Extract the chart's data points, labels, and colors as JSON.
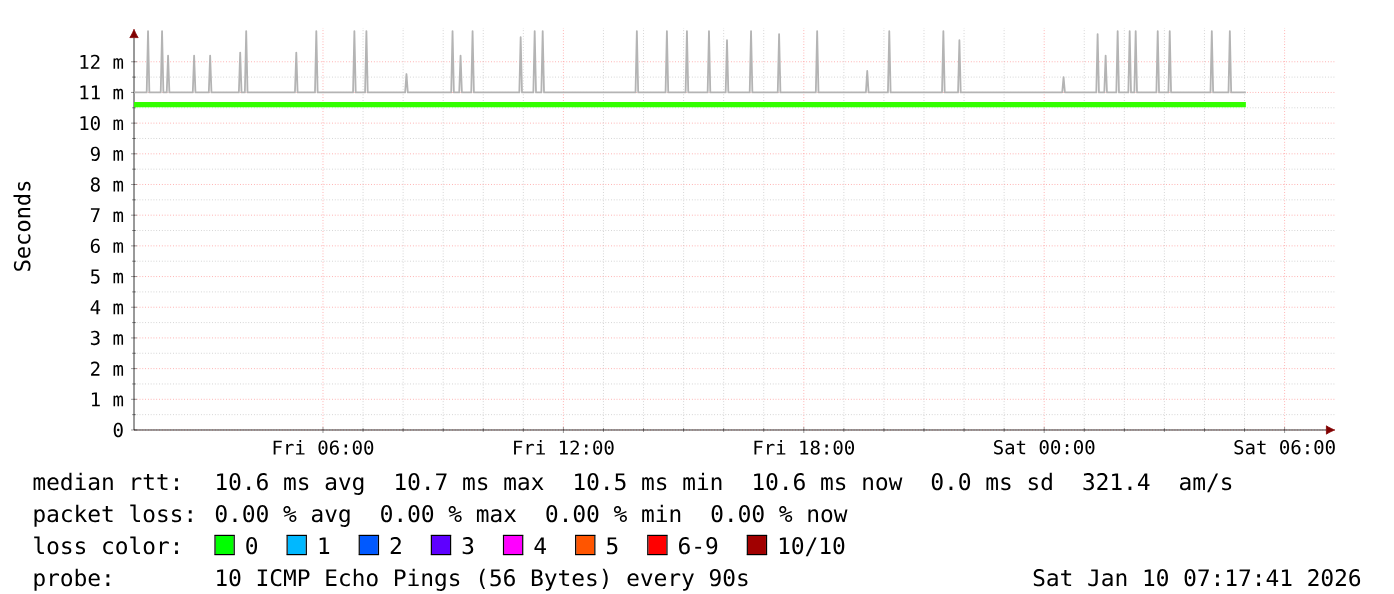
{
  "chart_data": {
    "type": "line",
    "ylabel": "Seconds",
    "xlim": [
      "2026-01-09T01:17",
      "2026-01-10T07:17"
    ],
    "xticks": [
      {
        "value": "2026-01-09T06:00",
        "label": "Fri 06:00"
      },
      {
        "value": "2026-01-09T12:00",
        "label": "Fri 12:00"
      },
      {
        "value": "2026-01-09T18:00",
        "label": "Fri 18:00"
      },
      {
        "value": "2026-01-10T00:00",
        "label": "Sat 00:00"
      },
      {
        "value": "2026-01-10T06:00",
        "label": "Sat 06:00"
      }
    ],
    "ylim": [
      0,
      13.1
    ],
    "yticks": [
      0,
      {
        "value": 1,
        "label": "1 m"
      },
      {
        "value": 2,
        "label": "2 m"
      },
      {
        "value": 3,
        "label": "3 m"
      },
      {
        "value": 4,
        "label": "4 m"
      },
      {
        "value": 5,
        "label": "5 m"
      },
      {
        "value": 6,
        "label": "6 m"
      },
      {
        "value": 7,
        "label": "7 m"
      },
      {
        "value": 8,
        "label": "8 m"
      },
      {
        "value": 9,
        "label": "9 m"
      },
      {
        "value": 10,
        "label": "10 m"
      },
      {
        "value": 11,
        "label": "11 m"
      },
      {
        "value": 12,
        "label": "12 m"
      }
    ],
    "grid": true,
    "series": [
      {
        "color": "#b4b4b4",
        "x": [
          "2026-01-09T01:17",
          "2026-01-09T01:36",
          "2026-01-09T01:38",
          "2026-01-09T01:40",
          "2026-01-09T01:57",
          "2026-01-09T01:59",
          "2026-01-09T02:01",
          "2026-01-09T02:06",
          "2026-01-09T02:08",
          "2026-01-09T02:10",
          "2026-01-09T02:45",
          "2026-01-09T02:47",
          "2026-01-09T02:49",
          "2026-01-09T03:09",
          "2026-01-09T03:11",
          "2026-01-09T03:13",
          "2026-01-09T03:54",
          "2026-01-09T03:56",
          "2026-01-09T03:58",
          "2026-01-09T04:03",
          "2026-01-09T04:05",
          "2026-01-09T04:07",
          "2026-01-09T05:18",
          "2026-01-09T05:20",
          "2026-01-09T05:22",
          "2026-01-09T05:48",
          "2026-01-09T05:50",
          "2026-01-09T05:52",
          "2026-01-09T06:45",
          "2026-01-09T06:47",
          "2026-01-09T06:49",
          "2026-01-09T07:03",
          "2026-01-09T07:05",
          "2026-01-09T07:07",
          "2026-01-09T08:03",
          "2026-01-09T08:05",
          "2026-01-09T08:07",
          "2026-01-09T09:12",
          "2026-01-09T09:14",
          "2026-01-09T09:16",
          "2026-01-09T09:24",
          "2026-01-09T09:26",
          "2026-01-09T09:28",
          "2026-01-09T09:42",
          "2026-01-09T09:44",
          "2026-01-09T09:46",
          "2026-01-09T10:54",
          "2026-01-09T10:56",
          "2026-01-09T10:58",
          "2026-01-09T11:15",
          "2026-01-09T11:17",
          "2026-01-09T11:19",
          "2026-01-09T11:27",
          "2026-01-09T11:29",
          "2026-01-09T11:31",
          "2026-01-09T13:48",
          "2026-01-09T13:50",
          "2026-01-09T13:52",
          "2026-01-09T14:33",
          "2026-01-09T14:35",
          "2026-01-09T14:37",
          "2026-01-09T15:03",
          "2026-01-09T15:05",
          "2026-01-09T15:07",
          "2026-01-09T15:36",
          "2026-01-09T15:38",
          "2026-01-09T15:40",
          "2026-01-09T16:03",
          "2026-01-09T16:05",
          "2026-01-09T16:07",
          "2026-01-09T16:39",
          "2026-01-09T16:41",
          "2026-01-09T16:43",
          "2026-01-09T17:21",
          "2026-01-09T17:23",
          "2026-01-09T17:25",
          "2026-01-09T18:18",
          "2026-01-09T18:20",
          "2026-01-09T18:22",
          "2026-01-09T19:33",
          "2026-01-09T19:35",
          "2026-01-09T19:37",
          "2026-01-09T20:06",
          "2026-01-09T20:08",
          "2026-01-09T20:10",
          "2026-01-09T21:27",
          "2026-01-09T21:29",
          "2026-01-09T21:31",
          "2026-01-09T21:51",
          "2026-01-09T21:53",
          "2026-01-09T21:55",
          "2026-01-10T00:27",
          "2026-01-10T00:29",
          "2026-01-10T00:31",
          "2026-01-10T01:18",
          "2026-01-10T01:20",
          "2026-01-10T01:22",
          "2026-01-10T01:30",
          "2026-01-10T01:32",
          "2026-01-10T01:34",
          "2026-01-10T01:48",
          "2026-01-10T01:50",
          "2026-01-10T01:52",
          "2026-01-10T02:06",
          "2026-01-10T02:08",
          "2026-01-10T02:10",
          "2026-01-10T02:15",
          "2026-01-10T02:17",
          "2026-01-10T02:19",
          "2026-01-10T02:48",
          "2026-01-10T02:50",
          "2026-01-10T02:52",
          "2026-01-10T03:06",
          "2026-01-10T03:08",
          "2026-01-10T03:10",
          "2026-01-10T04:09",
          "2026-01-10T04:11",
          "2026-01-10T04:13",
          "2026-01-10T04:36",
          "2026-01-10T04:38",
          "2026-01-10T04:40",
          "2026-01-10T05:02"
        ],
        "values": [
          11.0,
          11.0,
          13.0,
          11.0,
          11.0,
          13.0,
          11.0,
          11.0,
          12.2,
          11.0,
          11.0,
          12.2,
          11.0,
          11.0,
          12.2,
          11.0,
          11.0,
          12.3,
          11.0,
          11.0,
          13.0,
          11.0,
          11.0,
          12.3,
          11.0,
          11.0,
          13.0,
          11.0,
          11.0,
          13.0,
          11.0,
          11.0,
          13.0,
          11.0,
          11.0,
          11.6,
          11.0,
          11.0,
          13.0,
          11.0,
          11.0,
          12.2,
          11.0,
          11.0,
          13.0,
          11.0,
          11.0,
          12.8,
          11.0,
          11.0,
          13.0,
          11.0,
          11.0,
          13.0,
          11.0,
          11.0,
          13.0,
          11.0,
          11.0,
          13.0,
          11.0,
          11.0,
          13.0,
          11.0,
          11.0,
          13.0,
          11.0,
          11.0,
          12.7,
          11.0,
          11.0,
          13.0,
          11.0,
          11.0,
          12.9,
          11.0,
          11.0,
          13.0,
          11.0,
          11.0,
          11.7,
          11.0,
          11.0,
          13.0,
          11.0,
          11.0,
          13.0,
          11.0,
          11.0,
          12.7,
          11.0,
          11.0,
          11.5,
          11.0,
          11.0,
          12.9,
          11.0,
          11.0,
          12.2,
          11.0,
          11.0,
          13.0,
          11.0,
          11.0,
          13.0,
          11.0,
          11.0,
          13.0,
          11.0,
          11.0,
          13.0,
          11.0,
          11.0,
          13.0,
          11.0,
          11.0,
          13.0,
          11.0,
          11.0,
          13.0,
          11.0,
          11.0
        ]
      },
      {
        "color": "#33ff00",
        "x": [
          "2026-01-09T01:17",
          "2026-01-09T03:00",
          "2026-01-09T05:00",
          "2026-01-09T07:00",
          "2026-01-09T09:00",
          "2026-01-09T11:00",
          "2026-01-09T13:00",
          "2026-01-09T15:00",
          "2026-01-09T17:00",
          "2026-01-09T19:00",
          "2026-01-09T21:00",
          "2026-01-09T23:00",
          "2026-01-10T01:00",
          "2026-01-10T03:00",
          "2026-01-10T05:02"
        ],
        "values": [
          10.6,
          10.6,
          10.6,
          10.6,
          10.6,
          10.6,
          10.6,
          10.6,
          10.6,
          10.6,
          10.6,
          10.6,
          10.6,
          10.6,
          10.6
        ]
      }
    ],
    "annotations": [
      "median rtt:",
      "10.6 ms avg",
      "10.7 ms max",
      "10.5 ms min",
      "10.6 ms now",
      "0.0 ms sd",
      "321.4",
      "am/s",
      "packet loss:",
      "0.00 % avg",
      "0.00 % max",
      "0.00 % min",
      "0.00 % now",
      "loss color:",
      "0",
      "1",
      "2",
      "3",
      "4",
      "5",
      "6-9",
      "10/10",
      "probe:",
      "10 ICMP Echo Pings (56 Bytes) every 90s",
      "Sat Jan 10 07:17:41 2026"
    ]
  }
}
